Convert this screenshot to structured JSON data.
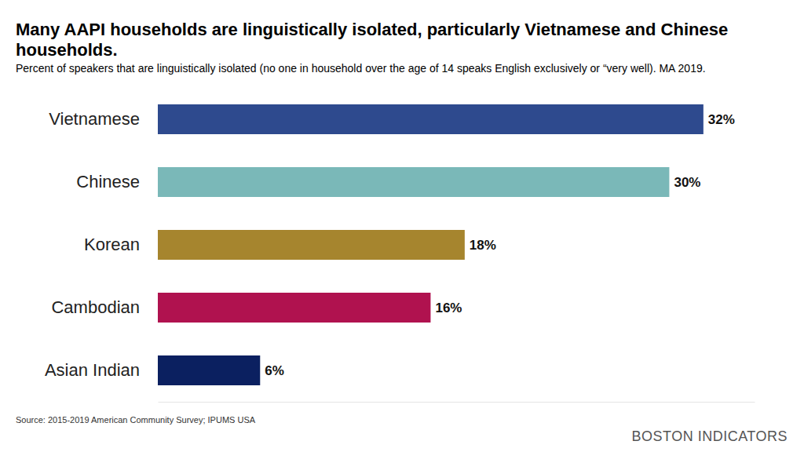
{
  "chart_data": {
    "type": "bar",
    "orientation": "horizontal",
    "title": "Many AAPI households are linguistically isolated, particularly Vietnamese and Chinese households.",
    "subtitle": "Percent of speakers that are linguistically isolated (no one in household over the age of 14 speaks English exclusively or “very well). MA 2019.",
    "source": "Source: 2015-2019 American Community Survey; IPUMS USA",
    "credit": "BOSTON INDICATORS",
    "categories": [
      "Vietnamese",
      "Chinese",
      "Korean",
      "Cambodian",
      "Asian Indian"
    ],
    "values": [
      32,
      30,
      18,
      16,
      6
    ],
    "value_labels": [
      "32%",
      "30%",
      "18%",
      "16%",
      "6%"
    ],
    "colors": [
      "#2e4a8e",
      "#7ab8b8",
      "#a6852e",
      "#b0124f",
      "#0b2060"
    ],
    "xlim": [
      0,
      35
    ],
    "data_labels": true,
    "tick_labels": "y",
    "grid": false
  }
}
